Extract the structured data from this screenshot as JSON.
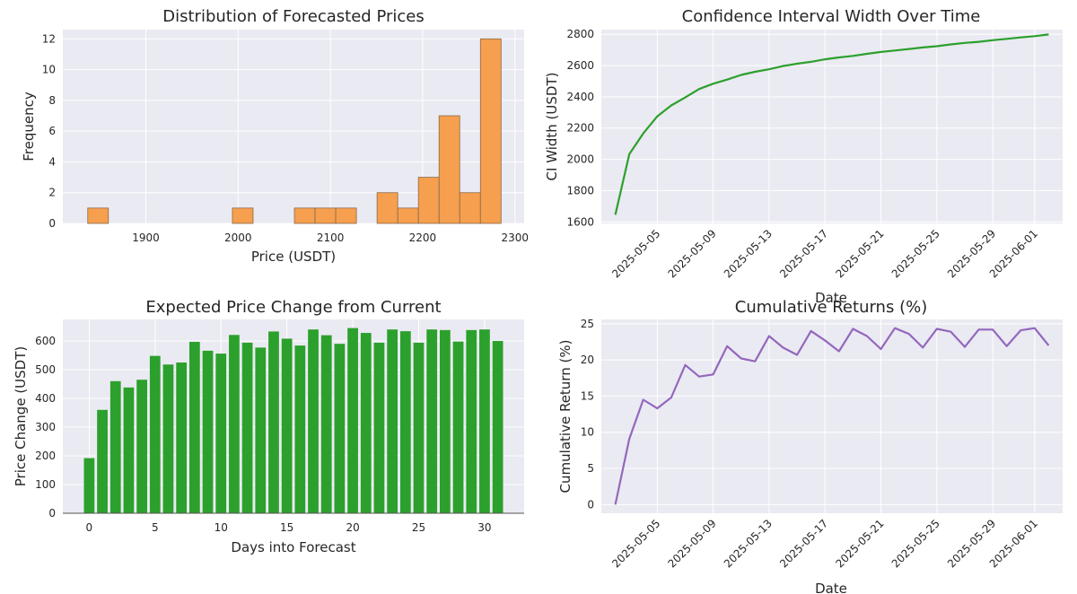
{
  "chart_data": [
    {
      "type": "bar",
      "title": "Distribution of Forecasted Prices",
      "xlabel": "Price (USDT)",
      "ylabel": "Frequency",
      "xlim": [
        1810,
        2310
      ],
      "ylim": [
        0,
        12.6
      ],
      "xticks": [
        "1900",
        "2000",
        "2100",
        "2200",
        "2300"
      ],
      "yticks": [
        "0",
        "2",
        "4",
        "6",
        "8",
        "10",
        "12"
      ],
      "bin_start": 1837,
      "bin_width": 22.4,
      "values": [
        1,
        0,
        0,
        0,
        0,
        0,
        0,
        1,
        0,
        0,
        1,
        1,
        1,
        0,
        2,
        1,
        3,
        7,
        2,
        12
      ],
      "color": "#f59f4f",
      "grid": true
    },
    {
      "type": "line",
      "title": "Confidence Interval Width Over Time",
      "xlabel": "Date",
      "ylabel": "CI Width (USDT)",
      "ylim": [
        1590,
        2830
      ],
      "xlim": [
        "2025-05-01",
        "2025-06-03"
      ],
      "xticks": [
        "2025-05-05",
        "2025-05-09",
        "2025-05-13",
        "2025-05-17",
        "2025-05-21",
        "2025-05-25",
        "2025-05-29",
        "2025-06-01"
      ],
      "yticks": [
        "1600",
        "1800",
        "2000",
        "2200",
        "2400",
        "2600",
        "2800"
      ],
      "x": [
        "2025-05-02",
        "2025-05-03",
        "2025-05-04",
        "2025-05-05",
        "2025-05-06",
        "2025-05-07",
        "2025-05-08",
        "2025-05-09",
        "2025-05-10",
        "2025-05-11",
        "2025-05-12",
        "2025-05-13",
        "2025-05-14",
        "2025-05-15",
        "2025-05-16",
        "2025-05-17",
        "2025-05-18",
        "2025-05-19",
        "2025-05-20",
        "2025-05-21",
        "2025-05-22",
        "2025-05-23",
        "2025-05-24",
        "2025-05-25",
        "2025-05-26",
        "2025-05-27",
        "2025-05-28",
        "2025-05-29",
        "2025-05-30",
        "2025-05-31",
        "2025-06-01",
        "2025-06-02"
      ],
      "values": [
        1645,
        2033,
        2166,
        2275,
        2345,
        2396,
        2450,
        2484,
        2510,
        2540,
        2560,
        2576,
        2597,
        2612,
        2624,
        2640,
        2652,
        2662,
        2675,
        2687,
        2696,
        2706,
        2716,
        2724,
        2735,
        2745,
        2752,
        2762,
        2771,
        2780,
        2788,
        2799
      ],
      "color": "#2ca02c",
      "grid": true
    },
    {
      "type": "bar",
      "title": "Expected Price Change from Current",
      "xlabel": "Days into Forecast",
      "ylabel": "Price Change (USDT)",
      "xlim": [
        -2,
        33
      ],
      "ylim": [
        0,
        675
      ],
      "xticks": [
        "0",
        "5",
        "10",
        "15",
        "20",
        "25",
        "30"
      ],
      "yticks": [
        "0",
        "100",
        "200",
        "300",
        "400",
        "500",
        "600"
      ],
      "categories": [
        0,
        1,
        2,
        3,
        4,
        5,
        6,
        7,
        8,
        9,
        10,
        11,
        12,
        13,
        14,
        15,
        16,
        17,
        18,
        19,
        20,
        21,
        22,
        23,
        24,
        25,
        26,
        27,
        28,
        29,
        30,
        31
      ],
      "values": [
        192,
        360,
        460,
        438,
        465,
        548,
        518,
        525,
        597,
        566,
        556,
        621,
        594,
        577,
        633,
        608,
        584,
        640,
        620,
        590,
        645,
        628,
        594,
        640,
        634,
        594,
        640,
        638,
        598,
        638,
        640,
        600
      ],
      "color": "#2ca02c",
      "grid": true
    },
    {
      "type": "line",
      "title": "Cumulative Returns (%)",
      "xlabel": "Date",
      "ylabel": "Cumulative Return (%)",
      "ylim": [
        -1.2,
        25.6
      ],
      "xlim": [
        "2025-05-01",
        "2025-06-03"
      ],
      "xticks": [
        "2025-05-05",
        "2025-05-09",
        "2025-05-13",
        "2025-05-17",
        "2025-05-21",
        "2025-05-25",
        "2025-05-29",
        "2025-06-01"
      ],
      "yticks": [
        "0",
        "5",
        "10",
        "15",
        "20",
        "25"
      ],
      "x": [
        "2025-05-02",
        "2025-05-03",
        "2025-05-04",
        "2025-05-05",
        "2025-05-06",
        "2025-05-07",
        "2025-05-08",
        "2025-05-09",
        "2025-05-10",
        "2025-05-11",
        "2025-05-12",
        "2025-05-13",
        "2025-05-14",
        "2025-05-15",
        "2025-05-16",
        "2025-05-17",
        "2025-05-18",
        "2025-05-19",
        "2025-05-20",
        "2025-05-21",
        "2025-05-22",
        "2025-05-23",
        "2025-05-24",
        "2025-05-25",
        "2025-05-26",
        "2025-05-27",
        "2025-05-28",
        "2025-05-29",
        "2025-05-30",
        "2025-05-31",
        "2025-06-01",
        "2025-06-02"
      ],
      "values": [
        0.0,
        9.1,
        14.5,
        13.3,
        14.8,
        19.3,
        17.7,
        18.0,
        21.9,
        20.2,
        19.8,
        23.3,
        21.7,
        20.7,
        24.0,
        22.7,
        21.2,
        24.3,
        23.3,
        21.5,
        24.4,
        23.6,
        21.7,
        24.3,
        23.9,
        21.8,
        24.2,
        24.2,
        21.9,
        24.1,
        24.4,
        22.0
      ],
      "color": "#9467bd",
      "grid": true
    }
  ]
}
